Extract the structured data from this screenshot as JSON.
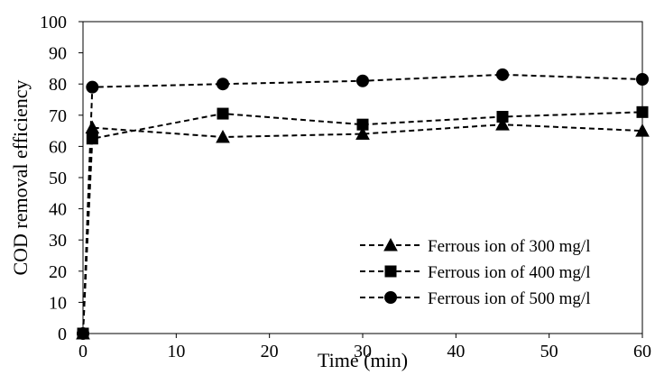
{
  "chart_data": {
    "type": "line",
    "title": "",
    "xlabel": "Time (min)",
    "ylabel": "COD removal efficiency",
    "xlim": [
      0,
      60
    ],
    "ylim": [
      0,
      100
    ],
    "xticks": [
      0,
      10,
      20,
      30,
      40,
      50,
      60
    ],
    "yticks": [
      0,
      10,
      20,
      30,
      40,
      50,
      60,
      70,
      80,
      90,
      100
    ],
    "grid": false,
    "legend_position": "bottom-right",
    "series": [
      {
        "name": "Ferrous ion of 300 mg/l",
        "marker": "triangle",
        "x": [
          0,
          1,
          15,
          30,
          45,
          60
        ],
        "y": [
          0,
          66,
          63,
          64,
          67,
          65
        ]
      },
      {
        "name": "Ferrous ion of 400 mg/l",
        "marker": "square",
        "x": [
          0,
          1,
          15,
          30,
          45,
          60
        ],
        "y": [
          0,
          62.5,
          70.5,
          67,
          69.5,
          71
        ]
      },
      {
        "name": "Ferrous ion of 500 mg/l",
        "marker": "circle",
        "x": [
          0,
          1,
          15,
          30,
          45,
          60
        ],
        "y": [
          0,
          79,
          80,
          81,
          83,
          81.5
        ]
      }
    ]
  }
}
